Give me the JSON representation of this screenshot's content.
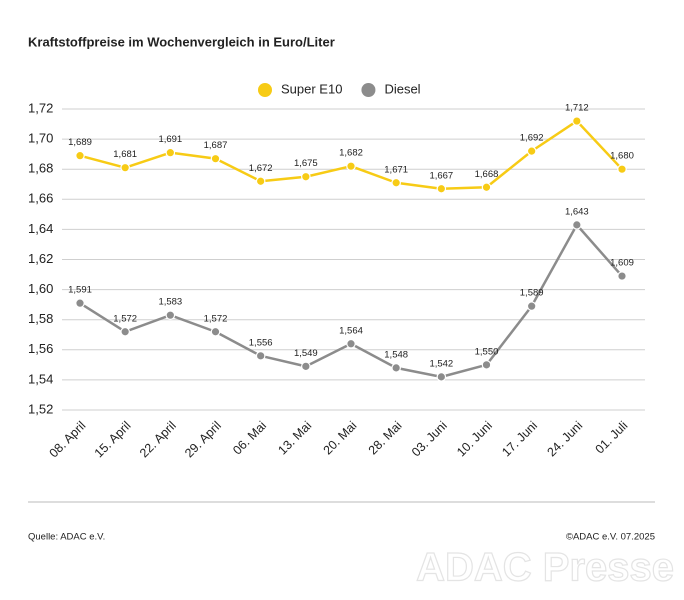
{
  "chart_data": {
    "type": "line",
    "title": "Kraftstoffpreise im Wochenvergleich in Euro/Liter",
    "categories": [
      "08. April",
      "15. April",
      "22. April",
      "29. April",
      "06. Mai",
      "13. Mai",
      "20. Mai",
      "28. Mai",
      "03. Juni",
      "10. Juni",
      "17. Juni",
      "24. Juni",
      "01. Juli"
    ],
    "series": [
      {
        "name": "Super E10",
        "color": "#f7cb15",
        "values": [
          1.689,
          1.681,
          1.691,
          1.687,
          1.672,
          1.675,
          1.682,
          1.671,
          1.667,
          1.668,
          1.692,
          1.712,
          1.68
        ],
        "value_labels": [
          "1,689",
          "1,681",
          "1,691",
          "1,687",
          "1,672",
          "1,675",
          "1,682",
          "1,671",
          "1,667",
          "1,668",
          "1,692",
          "1,712",
          "1,680"
        ]
      },
      {
        "name": "Diesel",
        "color": "#8c8c8c",
        "values": [
          1.591,
          1.572,
          1.583,
          1.572,
          1.556,
          1.549,
          1.564,
          1.548,
          1.542,
          1.55,
          1.589,
          1.643,
          1.609
        ],
        "value_labels": [
          "1,591",
          "1,572",
          "1,583",
          "1,572",
          "1,556",
          "1,549",
          "1,564",
          "1,548",
          "1,542",
          "1,550",
          "1,589",
          "1,643",
          "1,609"
        ]
      }
    ],
    "ylim": [
      1.52,
      1.72
    ],
    "yticks": [
      {
        "value": 1.52,
        "label": "1,52"
      },
      {
        "value": 1.54,
        "label": "1,54"
      },
      {
        "value": 1.56,
        "label": "1,56"
      },
      {
        "value": 1.58,
        "label": "1,58"
      },
      {
        "value": 1.6,
        "label": "1,60"
      },
      {
        "value": 1.62,
        "label": "1,62"
      },
      {
        "value": 1.64,
        "label": "1,64"
      },
      {
        "value": 1.66,
        "label": "1,66"
      },
      {
        "value": 1.68,
        "label": "1,68"
      },
      {
        "value": 1.7,
        "label": "1,70"
      },
      {
        "value": 1.72,
        "label": "1,72"
      }
    ],
    "grid": true,
    "legend": "top",
    "source": "Quelle: ADAC e.V.",
    "copyright": "©ADAC e.V. 07.2025",
    "watermark": "ADAC Presse"
  }
}
